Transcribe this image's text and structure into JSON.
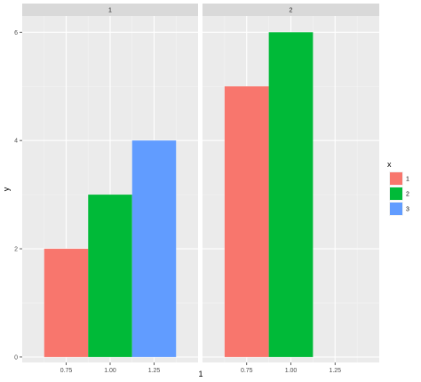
{
  "chart_data": {
    "type": "bar",
    "facet_variable": "1",
    "facets": [
      {
        "strip_label": "1",
        "bars": [
          {
            "x": 0.75,
            "group": "1",
            "y": 2
          },
          {
            "x": 1.0,
            "group": "2",
            "y": 3
          },
          {
            "x": 1.25,
            "group": "3",
            "y": 4
          }
        ]
      },
      {
        "strip_label": "2",
        "bars": [
          {
            "x": 0.75,
            "group": "1",
            "y": 5
          },
          {
            "x": 1.0,
            "group": "2",
            "y": 6
          }
        ]
      }
    ],
    "bar_width": 0.25,
    "xlim": [
      0.5,
      1.5
    ],
    "ylim": [
      -0.1,
      6.3
    ],
    "x_ticks": [
      "0.75",
      "1.00",
      "1.25"
    ],
    "y_ticks": [
      "0",
      "2",
      "4",
      "6"
    ],
    "xlabel": "1",
    "ylabel": "y",
    "legend": {
      "title": "x",
      "position": "right",
      "entries": [
        {
          "label": "1",
          "color": "#F8766D"
        },
        {
          "label": "2",
          "color": "#00BA38"
        },
        {
          "label": "3",
          "color": "#619CFF"
        }
      ]
    },
    "grid": true,
    "colors": {
      "panel_background": "#EBEBEB",
      "strip_background": "#D9D9D9",
      "grid_major": "#FFFFFF"
    }
  }
}
